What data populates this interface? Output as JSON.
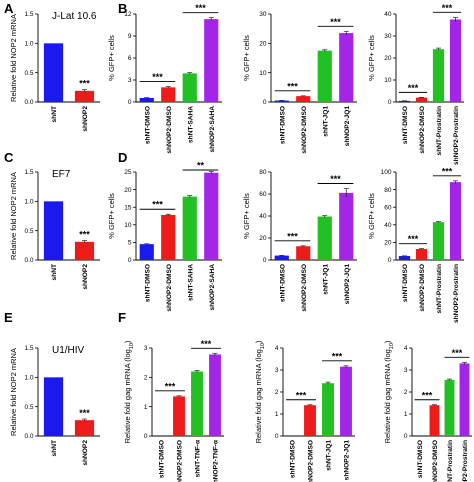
{
  "colors": {
    "blue": "#1a1aee",
    "red": "#ee1b1b",
    "green": "#22c022",
    "purple": "#a326e8"
  },
  "panel_letters": [
    "A",
    "B",
    "C",
    "D",
    "E",
    "F"
  ],
  "chart_data": [
    {
      "id": "A1",
      "panel": "A",
      "type": "bar",
      "inset_label": "J-Lat 10.6",
      "ylabel": "Relative fold NOP2 mRNA",
      "ylim": [
        0,
        1.5
      ],
      "yticks": [
        "0.0",
        "0.5",
        "1.0",
        "1.5"
      ],
      "categories": [
        "shNT",
        "shNOP2"
      ],
      "values": [
        1.0,
        0.19
      ],
      "errors": [
        0,
        0.02
      ],
      "colors": [
        "blue",
        "red"
      ],
      "significance": [
        {
          "label": "***",
          "from": 1,
          "to": 1,
          "bracket": false
        }
      ]
    },
    {
      "id": "B1",
      "panel": "B",
      "type": "bar",
      "ylabel": "% GFP+ cells",
      "ylim": [
        0,
        12
      ],
      "yticks": [
        "0",
        "3",
        "6",
        "9",
        "12"
      ],
      "categories": [
        "shNT-DMSO",
        "shNOP2-DMSO",
        "shNT-SAHA",
        "shNOP2-SAHA"
      ],
      "values": [
        0.55,
        2.0,
        3.9,
        11.3
      ],
      "errors": [
        0.05,
        0.1,
        0.1,
        0.2
      ],
      "colors": [
        "blue",
        "red",
        "green",
        "purple"
      ],
      "significance": [
        {
          "label": "***",
          "from": 0,
          "to": 1,
          "bracket": true
        },
        {
          "label": "***",
          "from": 2,
          "to": 3,
          "bracket": true
        }
      ]
    },
    {
      "id": "B2",
      "panel": "B",
      "type": "bar",
      "ylabel": "% GFP+ cells",
      "ylim": [
        0,
        30
      ],
      "yticks": [
        "0",
        "10",
        "20",
        "30"
      ],
      "categories": [
        "shNT-DMSO",
        "shNOP2-DMSO",
        "shNT-JQ1",
        "shNOP2-JQ1"
      ],
      "values": [
        0.5,
        2.0,
        17.5,
        23.5
      ],
      "errors": [
        0.05,
        0.1,
        0.3,
        0.6
      ],
      "colors": [
        "blue",
        "red",
        "green",
        "purple"
      ],
      "significance": [
        {
          "label": "***",
          "from": 0,
          "to": 1,
          "bracket": true
        },
        {
          "label": "***",
          "from": 2,
          "to": 3,
          "bracket": true
        }
      ]
    },
    {
      "id": "B3",
      "panel": "B",
      "type": "bar",
      "ylabel": "% GFP+ cells",
      "ylim": [
        0,
        40
      ],
      "yticks": [
        "0",
        "10",
        "20",
        "30",
        "40"
      ],
      "categories": [
        "shNT-DMSO",
        "shNOP2-DMSO",
        "shNT-Prostratin",
        "shNOP2-Prostratin"
      ],
      "values": [
        0.5,
        2.0,
        24.0,
        37.5
      ],
      "errors": [
        0.05,
        0.1,
        0.5,
        1.0
      ],
      "colors": [
        "blue",
        "red",
        "green",
        "purple"
      ],
      "significance": [
        {
          "label": "***",
          "from": 0,
          "to": 1,
          "bracket": true
        },
        {
          "label": "***",
          "from": 2,
          "to": 3,
          "bracket": true
        }
      ]
    },
    {
      "id": "C1",
      "panel": "C",
      "type": "bar",
      "inset_label": "EF7",
      "ylabel": "Relative fold NOP2 mRNA",
      "ylim": [
        0,
        1.5
      ],
      "yticks": [
        "0.0",
        "0.5",
        "1.0",
        "1.5"
      ],
      "categories": [
        "shNT",
        "shNOP2"
      ],
      "values": [
        1.0,
        0.31
      ],
      "errors": [
        0,
        0.02
      ],
      "colors": [
        "blue",
        "red"
      ],
      "significance": [
        {
          "label": "***",
          "from": 1,
          "to": 1,
          "bracket": false
        }
      ]
    },
    {
      "id": "D1",
      "panel": "D",
      "type": "bar",
      "ylabel": "% GFP+ cells",
      "ylim": [
        0,
        25
      ],
      "yticks": [
        "0",
        "5",
        "10",
        "15",
        "20",
        "25"
      ],
      "categories": [
        "shNT-DMSO",
        "shNOP2-DMSO",
        "shNT-SAHA",
        "shNOP2-SAHA"
      ],
      "values": [
        4.5,
        12.8,
        18.0,
        24.8
      ],
      "errors": [
        0.1,
        0.2,
        0.3,
        0.4
      ],
      "colors": [
        "blue",
        "red",
        "green",
        "purple"
      ],
      "significance": [
        {
          "label": "***",
          "from": 0,
          "to": 1,
          "bracket": true
        },
        {
          "label": "**",
          "from": 2,
          "to": 3,
          "bracket": true
        }
      ]
    },
    {
      "id": "D2",
      "panel": "D",
      "type": "bar",
      "ylabel": "% GFP+ cells",
      "ylim": [
        0,
        80
      ],
      "yticks": [
        "0",
        "20",
        "40",
        "60",
        "80"
      ],
      "categories": [
        "shNT-DMSO",
        "shNOP2-DMSO",
        "shNT-JQ1",
        "shNOP2-JQ1"
      ],
      "values": [
        4.0,
        12.5,
        39.5,
        61.0
      ],
      "errors": [
        0.2,
        0.4,
        0.8,
        4.0
      ],
      "colors": [
        "blue",
        "red",
        "green",
        "purple"
      ],
      "significance": [
        {
          "label": "***",
          "from": 0,
          "to": 1,
          "bracket": true
        },
        {
          "label": "***",
          "from": 2,
          "to": 3,
          "bracket": true
        }
      ]
    },
    {
      "id": "D3",
      "panel": "D",
      "type": "bar",
      "ylabel": "% GFP+ cells",
      "ylim": [
        0,
        100
      ],
      "yticks": [
        "0",
        "20",
        "40",
        "60",
        "80",
        "100"
      ],
      "categories": [
        "shNT-DMSO",
        "shNOP2-DMSO",
        "shNT-Prostratin",
        "shNOP2-Prostratin"
      ],
      "values": [
        4.5,
        12.5,
        43.0,
        88.5
      ],
      "errors": [
        0.2,
        0.4,
        0.6,
        1.5
      ],
      "colors": [
        "blue",
        "red",
        "green",
        "purple"
      ],
      "significance": [
        {
          "label": "***",
          "from": 0,
          "to": 1,
          "bracket": true
        },
        {
          "label": "***",
          "from": 2,
          "to": 3,
          "bracket": true
        }
      ]
    },
    {
      "id": "E1",
      "panel": "E",
      "type": "bar",
      "inset_label": "U1/HIV",
      "ylabel": "Relative fold NOP2 mRNA",
      "ylim": [
        0,
        1.5
      ],
      "yticks": [
        "0.0",
        "0.5",
        "1.0",
        "1.5"
      ],
      "categories": [
        "shNT",
        "shNOP2"
      ],
      "values": [
        1.0,
        0.27
      ],
      "errors": [
        0,
        0.02
      ],
      "colors": [
        "blue",
        "red"
      ],
      "significance": [
        {
          "label": "***",
          "from": 1,
          "to": 1,
          "bracket": false
        }
      ]
    },
    {
      "id": "F1",
      "panel": "F",
      "type": "bar",
      "ylabel": "Relative fold gag mRNA (log10)",
      "ylim": [
        0,
        3
      ],
      "yticks": [
        "0",
        "1",
        "2",
        "3"
      ],
      "categories": [
        "shNT-DMSO",
        "shNOP2-DMSO",
        "shNT-TNF-α",
        "shNOP2-TNF-α"
      ],
      "values": [
        0.0,
        1.35,
        2.2,
        2.78
      ],
      "errors": [
        0,
        0.02,
        0.03,
        0.04
      ],
      "colors": [
        "blue",
        "red",
        "green",
        "purple"
      ],
      "significance": [
        {
          "label": "***",
          "from": 0,
          "to": 1,
          "bracket": true
        },
        {
          "label": "***",
          "from": 2,
          "to": 3,
          "bracket": true
        }
      ]
    },
    {
      "id": "F2",
      "panel": "F",
      "type": "bar",
      "ylabel": "Relative fold gag mRNA (log10)",
      "ylim": [
        0,
        4
      ],
      "yticks": [
        "0",
        "1",
        "2",
        "3",
        "4"
      ],
      "categories": [
        "shNT-DMSO",
        "shNOP2-DMSO",
        "shNT-JQ1",
        "shNOP2-JQ1"
      ],
      "values": [
        0.0,
        1.4,
        2.4,
        3.15
      ],
      "errors": [
        0,
        0.02,
        0.05,
        0.04
      ],
      "colors": [
        "blue",
        "red",
        "green",
        "purple"
      ],
      "significance": [
        {
          "label": "***",
          "from": 0,
          "to": 1,
          "bracket": true
        },
        {
          "label": "***",
          "from": 2,
          "to": 3,
          "bracket": true
        }
      ]
    },
    {
      "id": "F3",
      "panel": "F",
      "type": "bar",
      "ylabel": "Relative fold gag mRNA (log10)",
      "ylim": [
        0,
        4
      ],
      "yticks": [
        "0",
        "1",
        "2",
        "3",
        "4"
      ],
      "categories": [
        "shNT-DMSO",
        "shNOP2-DMSO",
        "shNT-Prostratin",
        "shNOP2-Prostratin"
      ],
      "values": [
        0.0,
        1.4,
        2.55,
        3.3
      ],
      "errors": [
        0,
        0.02,
        0.04,
        0.05
      ],
      "colors": [
        "blue",
        "red",
        "green",
        "purple"
      ],
      "significance": [
        {
          "label": "***",
          "from": 0,
          "to": 1,
          "bracket": true
        },
        {
          "label": "***",
          "from": 2,
          "to": 3,
          "bracket": true
        }
      ]
    }
  ]
}
